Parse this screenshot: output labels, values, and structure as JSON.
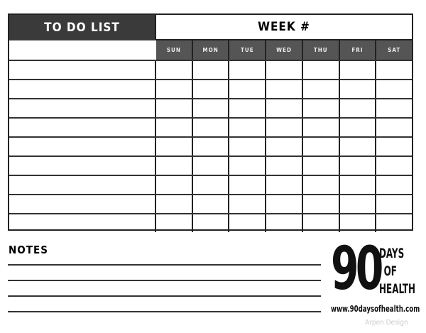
{
  "header": {
    "title": "TO DO LIST",
    "week_label": "WEEK #"
  },
  "days": [
    "SUN",
    "MON",
    "TUE",
    "WED",
    "THU",
    "FRI",
    "SAT"
  ],
  "notes_label": "NOTES",
  "logo": {
    "number": "90",
    "line1": "DAYS",
    "line2": "OF",
    "line3": "HEALTH",
    "url": "www.90daysofhealth.com"
  },
  "watermark": "Arpon Design"
}
